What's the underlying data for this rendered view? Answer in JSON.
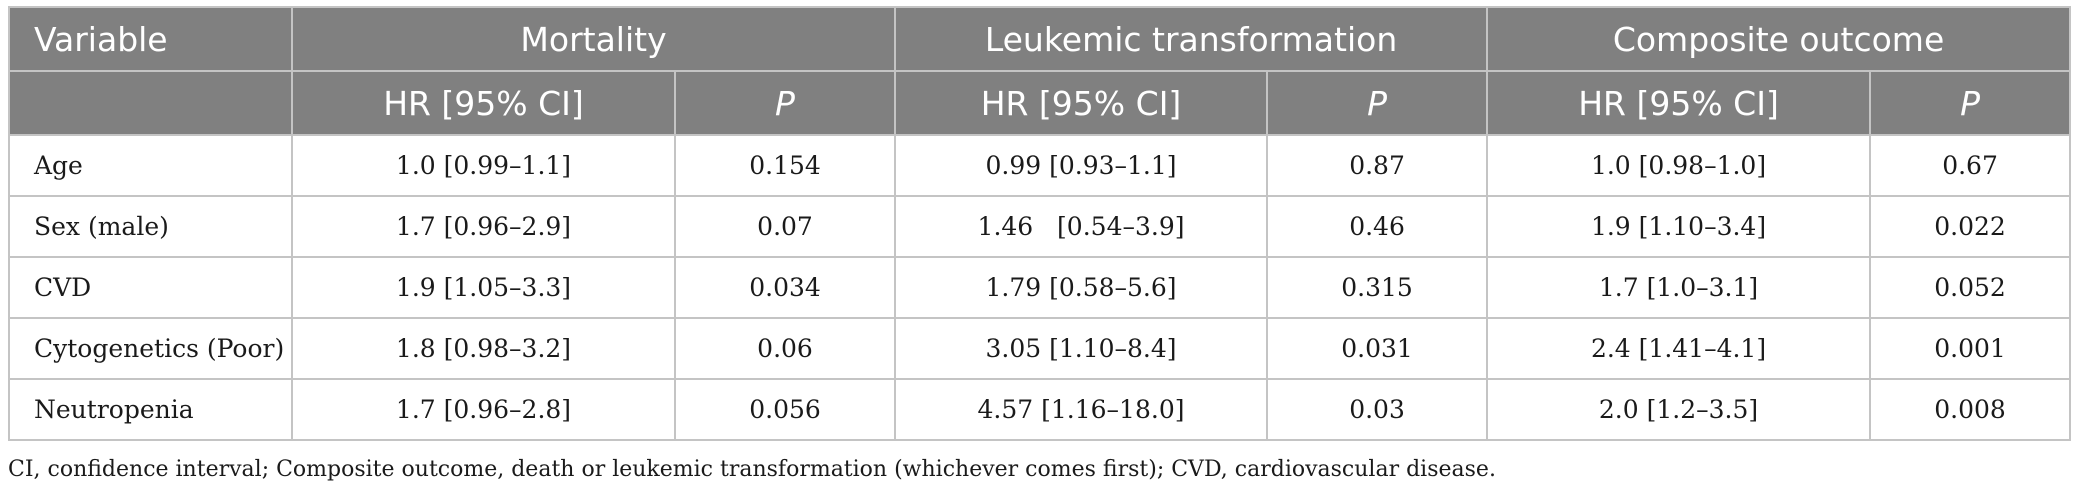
{
  "header": {
    "variable": "Variable",
    "groups": [
      "Mortality",
      "Leukemic transformation",
      "Composite outcome"
    ],
    "sub": [
      "HR [95% CI]",
      "P",
      "HR [95% CI]",
      "P",
      "HR [95% CI]",
      "P"
    ]
  },
  "rows": [
    {
      "variable": "Age",
      "m_hr": "1.0 [0.99–1.1]",
      "m_p": "0.154",
      "l_hr": "0.99 [0.93–1.1]",
      "l_p": "0.87",
      "c_hr": "1.0 [0.98–1.0]",
      "c_p": "0.67"
    },
    {
      "variable": "Sex (male)",
      "m_hr": "1.7 [0.96–2.9]",
      "m_p": "0.07",
      "l_hr": "1.46   [0.54–3.9]",
      "l_p": "0.46",
      "c_hr": "1.9 [1.10–3.4]",
      "c_p": "0.022"
    },
    {
      "variable": "CVD",
      "m_hr": "1.9 [1.05–3.3]",
      "m_p": "0.034",
      "l_hr": "1.79 [0.58–5.6]",
      "l_p": "0.315",
      "c_hr": "1.7 [1.0–3.1]",
      "c_p": "0.052"
    },
    {
      "variable": "Cytogenetics (Poor)",
      "m_hr": "1.8 [0.98–3.2]",
      "m_p": "0.06",
      "l_hr": "3.05 [1.10–8.4]",
      "l_p": "0.031",
      "c_hr": "2.4 [1.41–4.1]",
      "c_p": "0.001"
    },
    {
      "variable": "Neutropenia",
      "m_hr": "1.7 [0.96–2.8]",
      "m_p": "0.056",
      "l_hr": "4.57 [1.16–18.0]",
      "l_p": "0.03",
      "c_hr": "2.0 [1.2–3.5]",
      "c_p": "0.008"
    }
  ],
  "footnote": "CI, confidence interval; Composite outcome, death or leukemic transformation (whichever comes first); CVD, cardiovascular disease.",
  "colors": {
    "header_bg": "#808080",
    "header_text": "#ffffff",
    "border": "#c4c4c4"
  }
}
